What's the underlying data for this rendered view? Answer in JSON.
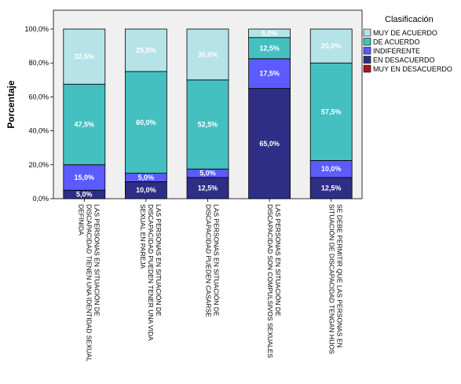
{
  "chart_data": {
    "type": "bar",
    "stacked": true,
    "ylabel": "Porcentaje",
    "ylim": [
      0,
      100
    ],
    "yticks": [
      "0,0%",
      "20,0%",
      "40,0%",
      "60,0%",
      "80,0%",
      "100,0%"
    ],
    "ytick_values": [
      0,
      20,
      40,
      60,
      80,
      100
    ],
    "grid": false,
    "categories": [
      [
        "LAS PERSONAS EN SITUACIÓN DE",
        "DISCAPACIDAD TIENEN UNA IDENTIDAD SEXUAL",
        "DEFINIDA"
      ],
      [
        "LAS PERSONAS EN SITUACIÓN DE",
        "DISCAPACIDAD PUEDEN TENER UNA VIDA",
        "SEXUAL EN PAREJA"
      ],
      [
        "LAS PERSONAS EN SITUACIÓN DE",
        "DISCAPACIDAD PUEDEN CASARSE"
      ],
      [
        "LAS PERSONAS EN SITUACIÓN DE",
        "DISCAPACIDAD SON COMPULSIVOS SEXUALES"
      ],
      [
        "SE DEBE PERMITIR QUE LAS PERSONAS EN",
        "SITUACIÓN DE DISCAPACIDAD TENGAN HIJOS"
      ]
    ],
    "legend": {
      "title": "Clasificación",
      "placement": "right"
    },
    "series": [
      {
        "name": "MUY EN DESACUERDO",
        "color": "#b4121e",
        "values": [
          0,
          0,
          0,
          0,
          0
        ],
        "labels": [
          "",
          "",
          "",
          "",
          ""
        ]
      },
      {
        "name": "EN DESACUERDO",
        "color": "#2e2e86",
        "values": [
          5,
          10,
          12.5,
          65,
          12.5
        ],
        "labels": [
          "5,0%",
          "10,0%",
          "12,5%",
          "65,0%",
          "12,5%"
        ]
      },
      {
        "name": "INDIFERENTE",
        "color": "#5b5bff",
        "values": [
          15,
          5,
          5,
          17.5,
          10
        ],
        "labels": [
          "15,0%",
          "5,0%",
          "5,0%",
          "17,5%",
          "10,0%"
        ]
      },
      {
        "name": "DE ACUERDO",
        "color": "#45c0c0",
        "values": [
          47.5,
          60,
          52.5,
          12.5,
          57.5
        ],
        "labels": [
          "47,5%",
          "60,0%",
          "52,5%",
          "12,5%",
          "57,5%"
        ]
      },
      {
        "name": "MUY DE ACUERDO",
        "color": "#b5e3e8",
        "values": [
          32.5,
          25,
          30,
          5,
          20
        ],
        "labels": [
          "32,5%",
          "25,0%",
          "30,0%",
          "5,0%",
          "20,0%"
        ]
      }
    ],
    "legend_order": [
      "MUY DE ACUERDO",
      "DE ACUERDO",
      "INDIFERENTE",
      "EN DESACUERDO",
      "MUY EN DESACUERDO"
    ],
    "colors": {
      "plot_background": "#f0f0f0",
      "bar_outline": "#000000",
      "label_text": "#ffffff"
    }
  }
}
